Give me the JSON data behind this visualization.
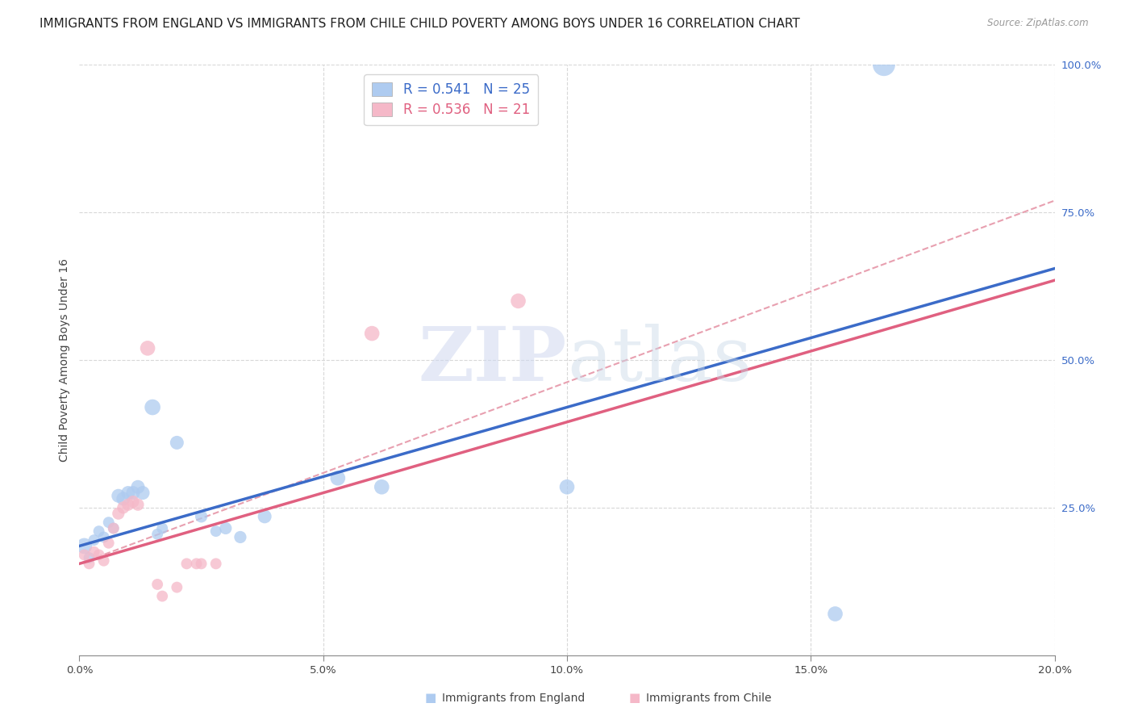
{
  "title": "IMMIGRANTS FROM ENGLAND VS IMMIGRANTS FROM CHILE CHILD POVERTY AMONG BOYS UNDER 16 CORRELATION CHART",
  "source": "Source: ZipAtlas.com",
  "ylabel": "Child Poverty Among Boys Under 16",
  "xlim": [
    0,
    0.2
  ],
  "ylim": [
    0,
    1.0
  ],
  "xtick_labels": [
    "0.0%",
    "",
    "",
    "",
    "5.0%",
    "",
    "",
    "",
    "",
    "10.0%",
    "",
    "",
    "",
    "",
    "15.0%",
    "",
    "",
    "",
    "",
    "20.0%"
  ],
  "xtick_major_labels": [
    "0.0%",
    "5.0%",
    "10.0%",
    "15.0%",
    "20.0%"
  ],
  "xtick_major_vals": [
    0.0,
    0.05,
    0.1,
    0.15,
    0.2
  ],
  "ytick_labels": [
    "25.0%",
    "50.0%",
    "75.0%",
    "100.0%"
  ],
  "ytick_vals": [
    0.25,
    0.5,
    0.75,
    1.0
  ],
  "watermark_zip": "ZIP",
  "watermark_atlas": "atlas",
  "england_scatter": [
    [
      0.001,
      0.185
    ],
    [
      0.002,
      0.165
    ],
    [
      0.003,
      0.195
    ],
    [
      0.004,
      0.21
    ],
    [
      0.005,
      0.2
    ],
    [
      0.006,
      0.225
    ],
    [
      0.007,
      0.215
    ],
    [
      0.008,
      0.27
    ],
    [
      0.009,
      0.265
    ],
    [
      0.01,
      0.275
    ],
    [
      0.011,
      0.275
    ],
    [
      0.012,
      0.285
    ],
    [
      0.013,
      0.275
    ],
    [
      0.015,
      0.42
    ],
    [
      0.016,
      0.205
    ],
    [
      0.017,
      0.215
    ],
    [
      0.02,
      0.36
    ],
    [
      0.025,
      0.235
    ],
    [
      0.028,
      0.21
    ],
    [
      0.03,
      0.215
    ],
    [
      0.033,
      0.2
    ],
    [
      0.038,
      0.235
    ],
    [
      0.053,
      0.3
    ],
    [
      0.062,
      0.285
    ],
    [
      0.1,
      0.285
    ],
    [
      0.155,
      0.07
    ],
    [
      0.165,
      1.0
    ]
  ],
  "england_scatter_sizes": [
    200,
    100,
    100,
    100,
    100,
    100,
    100,
    150,
    150,
    150,
    150,
    150,
    150,
    200,
    100,
    100,
    150,
    120,
    100,
    120,
    120,
    150,
    180,
    180,
    180,
    180,
    400
  ],
  "chile_scatter": [
    [
      0.001,
      0.17
    ],
    [
      0.002,
      0.155
    ],
    [
      0.003,
      0.175
    ],
    [
      0.004,
      0.17
    ],
    [
      0.005,
      0.16
    ],
    [
      0.006,
      0.19
    ],
    [
      0.007,
      0.215
    ],
    [
      0.008,
      0.24
    ],
    [
      0.009,
      0.25
    ],
    [
      0.01,
      0.255
    ],
    [
      0.011,
      0.26
    ],
    [
      0.012,
      0.255
    ],
    [
      0.014,
      0.52
    ],
    [
      0.016,
      0.12
    ],
    [
      0.017,
      0.1
    ],
    [
      0.02,
      0.115
    ],
    [
      0.022,
      0.155
    ],
    [
      0.024,
      0.155
    ],
    [
      0.025,
      0.155
    ],
    [
      0.028,
      0.155
    ],
    [
      0.06,
      0.545
    ],
    [
      0.09,
      0.6
    ]
  ],
  "chile_scatter_sizes": [
    100,
    100,
    100,
    100,
    100,
    100,
    100,
    120,
    120,
    120,
    120,
    120,
    180,
    100,
    100,
    100,
    100,
    100,
    100,
    100,
    180,
    180
  ],
  "england_color": "#aecbf0",
  "chile_color": "#f5b8c8",
  "england_line_color": "#3b6bc8",
  "chile_line_color": "#e06080",
  "ref_line_color": "#e8a0b0",
  "grid_color": "#d8d8d8",
  "background_color": "#ffffff",
  "title_fontsize": 11,
  "axis_label_fontsize": 10,
  "tick_fontsize": 9.5,
  "legend_fontsize": 12,
  "england_R": 0.541,
  "england_N": 25,
  "chile_R": 0.536,
  "chile_N": 21,
  "eng_line_x0": 0.0,
  "eng_line_y0": 0.185,
  "eng_line_x1": 0.2,
  "eng_line_y1": 0.655,
  "chi_line_x0": 0.0,
  "chi_line_y0": 0.155,
  "chi_line_x1": 0.2,
  "chi_line_y1": 0.635,
  "ref_line_x0": 0.0,
  "ref_line_y0": 0.155,
  "ref_line_x1": 0.2,
  "ref_line_y1": 0.77
}
